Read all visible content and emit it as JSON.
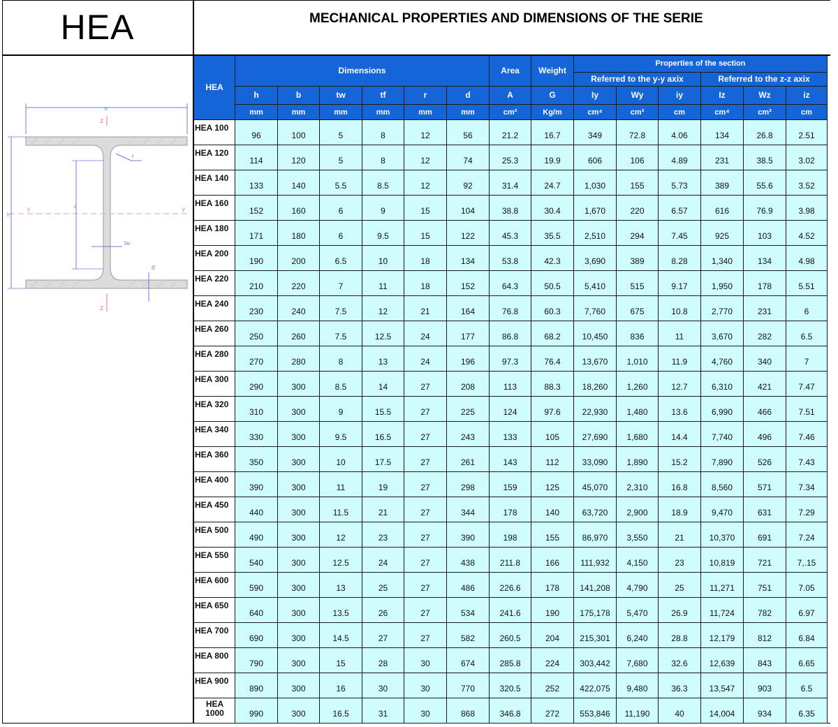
{
  "header": {
    "logo_text": "HEA",
    "title": "MECHANICAL PROPERTIES AND DIMENSIONS OF THE SERIE"
  },
  "table": {
    "corner_label": "HEA",
    "group_dimensions": "Dimensions",
    "group_area": "Area",
    "group_weight": "Weight",
    "group_properties": "Properties of the section",
    "group_yy": "Referred to the y-y axix",
    "group_zz": "Referred to the z-z axix",
    "columns": [
      {
        "symbol": "h",
        "unit": "mm"
      },
      {
        "symbol": "b",
        "unit": "mm"
      },
      {
        "symbol": "tw",
        "unit": "mm"
      },
      {
        "symbol": "tf",
        "unit": "mm"
      },
      {
        "symbol": "r",
        "unit": "mm"
      },
      {
        "symbol": "d",
        "unit": "mm"
      },
      {
        "symbol": "A",
        "unit": "cm²"
      },
      {
        "symbol": "G",
        "unit": "Kg/m"
      },
      {
        "symbol": "Iy",
        "unit": "cm⁴"
      },
      {
        "symbol": "Wy",
        "unit": "cm³"
      },
      {
        "symbol": "iy",
        "unit": "cm"
      },
      {
        "symbol": "Iz",
        "unit": "cm⁴"
      },
      {
        "symbol": "Wz",
        "unit": "cm³"
      },
      {
        "symbol": "iz",
        "unit": "cm"
      }
    ],
    "rows": [
      {
        "label": "HEA 100",
        "values": [
          "96",
          "100",
          "5",
          "8",
          "12",
          "56",
          "21.2",
          "16.7",
          "349",
          "72.8",
          "4.06",
          "134",
          "26.8",
          "2.51"
        ]
      },
      {
        "label": "HEA 120",
        "values": [
          "114",
          "120",
          "5",
          "8",
          "12",
          "74",
          "25.3",
          "19.9",
          "606",
          "106",
          "4.89",
          "231",
          "38.5",
          "3.02"
        ]
      },
      {
        "label": "HEA 140",
        "values": [
          "133",
          "140",
          "5.5",
          "8.5",
          "12",
          "92",
          "31.4",
          "24.7",
          "1,030",
          "155",
          "5.73",
          "389",
          "55.6",
          "3.52"
        ]
      },
      {
        "label": "HEA 160",
        "values": [
          "152",
          "160",
          "6",
          "9",
          "15",
          "104",
          "38.8",
          "30.4",
          "1,670",
          "220",
          "6.57",
          "616",
          "76.9",
          "3.98"
        ]
      },
      {
        "label": "HEA 180",
        "values": [
          "171",
          "180",
          "6",
          "9.5",
          "15",
          "122",
          "45.3",
          "35.5",
          "2,510",
          "294",
          "7.45",
          "925",
          "103",
          "4.52"
        ]
      },
      {
        "label": "HEA 200",
        "values": [
          "190",
          "200",
          "6.5",
          "10",
          "18",
          "134",
          "53.8",
          "42.3",
          "3,690",
          "389",
          "8.28",
          "1,340",
          "134",
          "4.98"
        ]
      },
      {
        "label": "HEA 220",
        "values": [
          "210",
          "220",
          "7",
          "11",
          "18",
          "152",
          "64.3",
          "50.5",
          "5,410",
          "515",
          "9.17",
          "1,950",
          "178",
          "5.51"
        ]
      },
      {
        "label": "HEA 240",
        "values": [
          "230",
          "240",
          "7.5",
          "12",
          "21",
          "164",
          "76.8",
          "60.3",
          "7,760",
          "675",
          "10.8",
          "2,770",
          "231",
          "6"
        ]
      },
      {
        "label": "HEA 260",
        "values": [
          "250",
          "260",
          "7.5",
          "12.5",
          "24",
          "177",
          "86.8",
          "68.2",
          "10,450",
          "836",
          "11",
          "3,670",
          "282",
          "6.5"
        ]
      },
      {
        "label": "HEA 280",
        "values": [
          "270",
          "280",
          "8",
          "13",
          "24",
          "196",
          "97.3",
          "76.4",
          "13,670",
          "1,010",
          "11.9",
          "4,760",
          "340",
          "7"
        ]
      },
      {
        "label": "HEA 300",
        "values": [
          "290",
          "300",
          "8.5",
          "14",
          "27",
          "208",
          "113",
          "88.3",
          "18,260",
          "1,260",
          "12.7",
          "6,310",
          "421",
          "7.47"
        ]
      },
      {
        "label": "HEA 320",
        "values": [
          "310",
          "300",
          "9",
          "15.5",
          "27",
          "225",
          "124",
          "97.6",
          "22,930",
          "1,480",
          "13.6",
          "6,990",
          "466",
          "7.51"
        ]
      },
      {
        "label": "HEA 340",
        "values": [
          "330",
          "300",
          "9.5",
          "16.5",
          "27",
          "243",
          "133",
          "105",
          "27,690",
          "1,680",
          "14.4",
          "7,740",
          "496",
          "7.46"
        ]
      },
      {
        "label": "HEA 360",
        "values": [
          "350",
          "300",
          "10",
          "17.5",
          "27",
          "261",
          "143",
          "112",
          "33,090",
          "1,890",
          "15.2",
          "7,890",
          "526",
          "7.43"
        ]
      },
      {
        "label": "HEA 400",
        "values": [
          "390",
          "300",
          "11",
          "19",
          "27",
          "298",
          "159",
          "125",
          "45,070",
          "2,310",
          "16.8",
          "8,560",
          "571",
          "7.34"
        ]
      },
      {
        "label": "HEA 450",
        "values": [
          "440",
          "300",
          "11.5",
          "21",
          "27",
          "344",
          "178",
          "140",
          "63,720",
          "2,900",
          "18.9",
          "9,470",
          "631",
          "7.29"
        ]
      },
      {
        "label": "HEA 500",
        "values": [
          "490",
          "300",
          "12",
          "23",
          "27",
          "390",
          "198",
          "155",
          "86,970",
          "3,550",
          "21",
          "10,370",
          "691",
          "7.24"
        ]
      },
      {
        "label": "HEA 550",
        "values": [
          "540",
          "300",
          "12.5",
          "24",
          "27",
          "438",
          "211.8",
          "166",
          "111,932",
          "4,150",
          "23",
          "10,819",
          "721",
          "7,.15"
        ]
      },
      {
        "label": "HEA 600",
        "values": [
          "590",
          "300",
          "13",
          "25",
          "27",
          "486",
          "226.6",
          "178",
          "141,208",
          "4,790",
          "25",
          "11,271",
          "751",
          "7.05"
        ]
      },
      {
        "label": "HEA 650",
        "values": [
          "640",
          "300",
          "13.5",
          "26",
          "27",
          "534",
          "241.6",
          "190",
          "175,178",
          "5,470",
          "26.9",
          "11,724",
          "782",
          "6.97"
        ]
      },
      {
        "label": "HEA 700",
        "values": [
          "690",
          "300",
          "14.5",
          "27",
          "27",
          "582",
          "260.5",
          "204",
          "215,301",
          "6,240",
          "28.8",
          "12,179",
          "812",
          "6.84"
        ]
      },
      {
        "label": "HEA 800",
        "values": [
          "790",
          "300",
          "15",
          "28",
          "30",
          "674",
          "285.8",
          "224",
          "303,442",
          "7,680",
          "32.6",
          "12,639",
          "843",
          "6.65"
        ]
      },
      {
        "label": "HEA 900",
        "values": [
          "890",
          "300",
          "16",
          "30",
          "30",
          "770",
          "320.5",
          "252",
          "422,075",
          "9,480",
          "36.3",
          "13,547",
          "903",
          "6.5"
        ]
      },
      {
        "label": "HEA 1000",
        "values": [
          "990",
          "300",
          "16.5",
          "31",
          "30",
          "868",
          "346.8",
          "272",
          "553,846",
          "11,190",
          "40",
          "14,004",
          "934",
          "6.35"
        ]
      }
    ]
  },
  "drawing": {
    "labels": {
      "z_top": "z",
      "z_bottom": "z",
      "y_left": "y",
      "y_right": "y",
      "b": "b",
      "h": "h",
      "d": "d",
      "r": "r",
      "tw": "tw",
      "tf": "tf"
    },
    "colors": {
      "section_fill": "#d9d9d9",
      "dimension_line": "#6a7fd6",
      "axis_line": "#f0a0a0"
    }
  }
}
